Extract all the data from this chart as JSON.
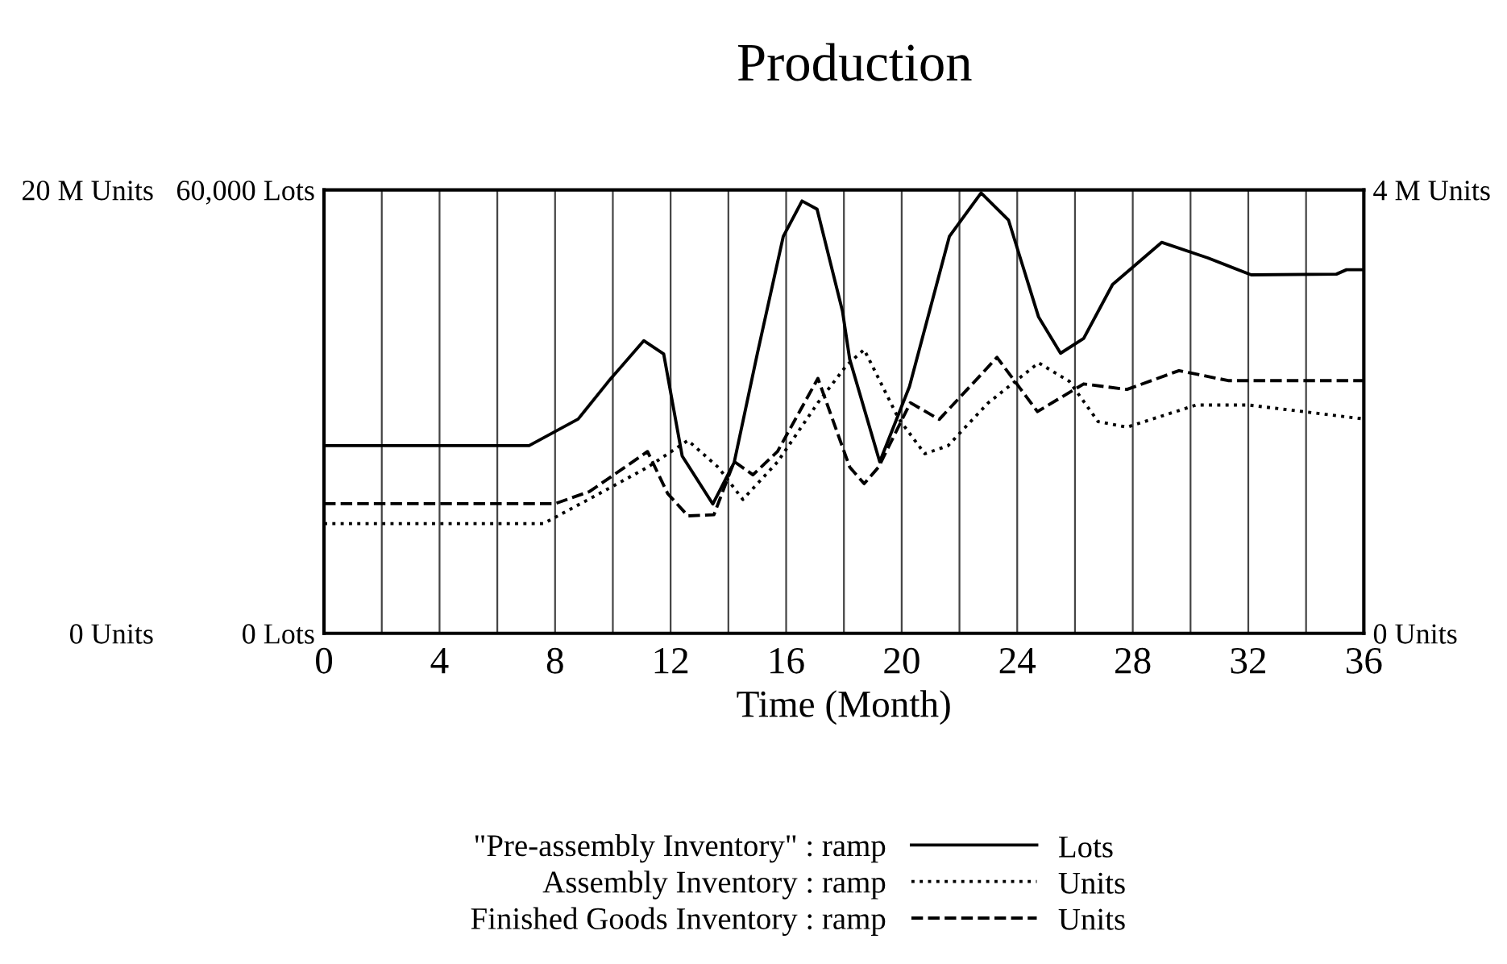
{
  "chart_data": {
    "type": "line",
    "title": "Production",
    "xlabel": "Time (Month)",
    "xlim": [
      0,
      36
    ],
    "xticks": [
      0,
      {
        "value": 2,
        "label": null
      },
      4,
      {
        "value": 6,
        "label": null
      },
      8,
      {
        "value": 10,
        "label": null
      },
      12,
      {
        "value": 14,
        "label": null
      },
      16,
      {
        "value": 18,
        "label": null
      },
      20,
      {
        "value": 22,
        "label": null
      },
      24,
      {
        "value": 26,
        "label": null
      },
      28,
      {
        "value": 30,
        "label": null
      },
      32,
      {
        "value": 34,
        "label": null
      },
      36
    ],
    "ylim": [
      0,
      60000
    ],
    "yticks": [
      {
        "value": 0,
        "label": "0 Lots"
      },
      {
        "value": 60000,
        "label": "60,000 Lots"
      }
    ],
    "y2lim": [
      0,
      20000000
    ],
    "y2ticks": [
      {
        "value": 0,
        "label": "0 Units"
      },
      {
        "value": 20000000,
        "label": "20 M Units"
      }
    ],
    "y3lim": [
      0,
      4000000
    ],
    "y3ticks": [
      {
        "value": 0,
        "label": "0 Units"
      },
      {
        "value": 4000000,
        "label": "4 M Units"
      }
    ],
    "grid": "x",
    "legend": "bottom",
    "annotations": [
      "Lots",
      "Units",
      "Units"
    ],
    "series": [
      {
        "name": "\"Pre-assembly Inventory\" : ramp",
        "color": "#000000",
        "line_style": "solid",
        "x": [
          0,
          7.1,
          8.8,
          9.85,
          11.07,
          11.76,
          12.4,
          13.46,
          14.2,
          15.0,
          15.9,
          16.55,
          17.07,
          17.95,
          18.2,
          19.24,
          20.27,
          21.65,
          22.75,
          23.7,
          24.74,
          25.5,
          26.3,
          27.3,
          29.0,
          30.6,
          32.1,
          35.05,
          35.4,
          36
        ],
        "values": [
          25400,
          25400,
          29000,
          34100,
          39600,
          37800,
          24000,
          17500,
          23100,
          37800,
          53700,
          58500,
          57400,
          43600,
          37100,
          23200,
          33400,
          53700,
          59600,
          55900,
          42800,
          37900,
          39900,
          47200,
          52900,
          50800,
          48500,
          48600,
          49200,
          49200
        ]
      },
      {
        "name": "Assembly Inventory : ramp",
        "color": "#000000",
        "line_style": "dotted",
        "axis": "y2",
        "x": [
          0,
          7.6,
          9.5,
          11.2,
          12.6,
          13.65,
          14.5,
          15.7,
          17.1,
          18.1,
          18.7,
          19.9,
          20.8,
          21.6,
          23.0,
          24.74,
          25.8,
          26.8,
          27.8,
          30.2,
          32.0,
          36
        ],
        "values": [
          4950000,
          4950000,
          6280000,
          7490000,
          8700000,
          7490000,
          6040000,
          7730000,
          10400000,
          12100000,
          12800000,
          9670000,
          8100000,
          8460000,
          10400000,
          12200000,
          11370000,
          9550000,
          9300000,
          10300000,
          10300000,
          9670000
        ]
      },
      {
        "name": "Finished Goods Inventory : ramp",
        "color": "#000000",
        "line_style": "dashed",
        "axis": "y3",
        "x": [
          0,
          8.0,
          9.2,
          11.2,
          11.9,
          12.6,
          13.5,
          14.2,
          14.85,
          15.7,
          17.1,
          17.8,
          18.2,
          18.7,
          19.2,
          20.3,
          21.3,
          22.7,
          23.3,
          24.7,
          26.3,
          27.8,
          29.6,
          31.3,
          36
        ],
        "values": [
          1170000,
          1170000,
          1280000,
          1640000,
          1260000,
          1060000,
          1070000,
          1550000,
          1430000,
          1640000,
          2300000,
          1790000,
          1500000,
          1350000,
          1500000,
          2080000,
          1930000,
          2320000,
          2490000,
          2000000,
          2250000,
          2200000,
          2370000,
          2280000,
          2280000
        ]
      }
    ]
  }
}
